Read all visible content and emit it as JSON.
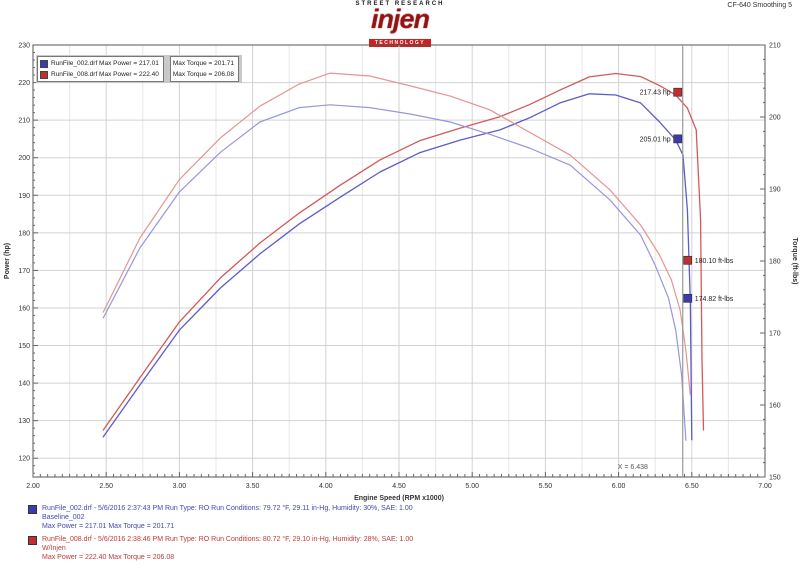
{
  "header": {
    "brand_top": "STREET RESEARCH",
    "brand": "injen",
    "brand_sub": "TECHNOLOGY",
    "top_right": "CF-640  Smoothing 5"
  },
  "legend_top": {
    "power_box": [
      {
        "text": "RunFile_002.drf  Max Power = 217.01",
        "color": "#3c3cb0"
      },
      {
        "text": "RunFile_008.drf  Max Power = 222.40",
        "color": "#c03030"
      }
    ],
    "torque_box": [
      {
        "text": "Max Torque = 201.71"
      },
      {
        "text": "Max Torque = 206.08"
      }
    ]
  },
  "chart_data": {
    "type": "line",
    "xlabel": "Engine Speed (RPM x1000)",
    "ylabel_left": "Power (hp)",
    "ylabel_right": "Torque (ft-lbs)",
    "x_range": [
      2.0,
      7.0
    ],
    "power_range": [
      115,
      230
    ],
    "torque_range": [
      150,
      210
    ],
    "x_ticks": [
      2.0,
      2.5,
      3.0,
      3.5,
      4.0,
      4.5,
      5.0,
      5.5,
      6.0,
      6.5,
      7.0
    ],
    "power_ticks": [
      230,
      220,
      210,
      200,
      190,
      180,
      170,
      160,
      150,
      140,
      130,
      120
    ],
    "torque_ticks": [
      210,
      200,
      190,
      180,
      170,
      160,
      150
    ],
    "grid": true,
    "series": [
      {
        "name": "power-baseline",
        "axis": "power",
        "color": "#5c5cc8",
        "width": 1.3,
        "points": [
          [
            2.48,
            125.7
          ],
          [
            2.73,
            139.5
          ],
          [
            3.0,
            154.1
          ],
          [
            3.28,
            165.3
          ],
          [
            3.55,
            174.4
          ],
          [
            3.82,
            182.4
          ],
          [
            4.1,
            189.5
          ],
          [
            4.37,
            196.2
          ],
          [
            4.64,
            201.3
          ],
          [
            4.92,
            204.7
          ],
          [
            5.19,
            207.4
          ],
          [
            5.39,
            210.6
          ],
          [
            5.6,
            214.6
          ],
          [
            5.8,
            217.0
          ],
          [
            5.98,
            216.7
          ],
          [
            6.15,
            214.6
          ],
          [
            6.28,
            209.5
          ],
          [
            6.39,
            204.7
          ],
          [
            6.44,
            200.7
          ],
          [
            6.47,
            186.1
          ],
          [
            6.49,
            162.1
          ],
          [
            6.5,
            124.9
          ]
        ]
      },
      {
        "name": "power-injen",
        "axis": "power",
        "color": "#d45858",
        "width": 1.3,
        "points": [
          [
            2.48,
            127.5
          ],
          [
            2.73,
            141.4
          ],
          [
            3.0,
            156.3
          ],
          [
            3.28,
            168.0
          ],
          [
            3.55,
            177.3
          ],
          [
            3.82,
            185.3
          ],
          [
            4.1,
            192.7
          ],
          [
            4.37,
            199.4
          ],
          [
            4.64,
            204.5
          ],
          [
            4.92,
            207.9
          ],
          [
            5.19,
            210.9
          ],
          [
            5.39,
            214.1
          ],
          [
            5.6,
            218.0
          ],
          [
            5.8,
            221.5
          ],
          [
            5.98,
            222.4
          ],
          [
            6.15,
            221.6
          ],
          [
            6.28,
            219.2
          ],
          [
            6.39,
            216.7
          ],
          [
            6.47,
            213.2
          ],
          [
            6.53,
            207.4
          ],
          [
            6.56,
            183.4
          ],
          [
            6.57,
            146.2
          ],
          [
            6.58,
            127.5
          ]
        ]
      },
      {
        "name": "torque-baseline",
        "axis": "torque",
        "color": "#9696dc",
        "width": 1.2,
        "points": [
          [
            2.48,
            172.1
          ],
          [
            2.73,
            181.8
          ],
          [
            3.0,
            189.6
          ],
          [
            3.28,
            195.1
          ],
          [
            3.55,
            199.3
          ],
          [
            3.82,
            201.3
          ],
          [
            4.03,
            201.7
          ],
          [
            4.3,
            201.3
          ],
          [
            4.58,
            200.4
          ],
          [
            4.85,
            199.3
          ],
          [
            5.12,
            197.6
          ],
          [
            5.39,
            195.7
          ],
          [
            5.67,
            193.3
          ],
          [
            5.94,
            188.5
          ],
          [
            6.15,
            183.6
          ],
          [
            6.25,
            179.4
          ],
          [
            6.34,
            174.9
          ],
          [
            6.39,
            170.4
          ],
          [
            6.43,
            164.2
          ],
          [
            6.46,
            155.1
          ]
        ]
      },
      {
        "name": "torque-injen",
        "axis": "torque",
        "color": "#e49494",
        "width": 1.2,
        "points": [
          [
            2.48,
            172.9
          ],
          [
            2.73,
            183.2
          ],
          [
            3.0,
            191.3
          ],
          [
            3.28,
            197.1
          ],
          [
            3.55,
            201.5
          ],
          [
            3.82,
            204.6
          ],
          [
            4.03,
            206.1
          ],
          [
            4.3,
            205.7
          ],
          [
            4.58,
            204.3
          ],
          [
            4.85,
            202.9
          ],
          [
            5.12,
            201.0
          ],
          [
            5.39,
            197.9
          ],
          [
            5.67,
            194.7
          ],
          [
            5.94,
            189.9
          ],
          [
            6.15,
            185.0
          ],
          [
            6.28,
            180.8
          ],
          [
            6.36,
            177.4
          ],
          [
            6.42,
            173.2
          ],
          [
            6.46,
            167.6
          ],
          [
            6.49,
            161.4
          ]
        ]
      }
    ],
    "cursor": {
      "x": 6.438,
      "label": "X = 6.438",
      "callouts": [
        {
          "text": "217.43 hp",
          "value": 217.43,
          "axis": "power",
          "side": "left",
          "color": "#c03030"
        },
        {
          "text": "205.01 hp",
          "value": 205.01,
          "axis": "power",
          "side": "left",
          "color": "#3c3cb0"
        },
        {
          "text": "180.10 ft-lbs",
          "value": 180.1,
          "axis": "torque",
          "side": "right",
          "color": "#c03030"
        },
        {
          "text": "174.82 ft-lbs",
          "value": 174.82,
          "axis": "torque",
          "side": "right",
          "color": "#3c3cb0"
        }
      ]
    }
  },
  "runs": [
    {
      "color": "#4646b4",
      "swatch": "#3c3cb0",
      "line1": "RunFile_002.drf - 5/6/2016 2:37:43 PM   Run Type: RO   Run Conditions: 79.72 °F, 29.11 in-Hg, Humidity: 30%, SAE: 1.00",
      "line2": "Baseline_002",
      "line3": "Max Power = 217.01   Max Torque = 201.71"
    },
    {
      "color": "#c03a3a",
      "swatch": "#c03030",
      "line1": "RunFile_008.drf - 5/6/2016 2:38:46 PM   Run Type: RO   Run Conditions: 80.72 °F, 29.10 in-Hg, Humidity: 28%, SAE: 1.00",
      "line2": "W/Injen",
      "line3": "Max Power = 222.40   Max Torque = 206.08"
    }
  ]
}
